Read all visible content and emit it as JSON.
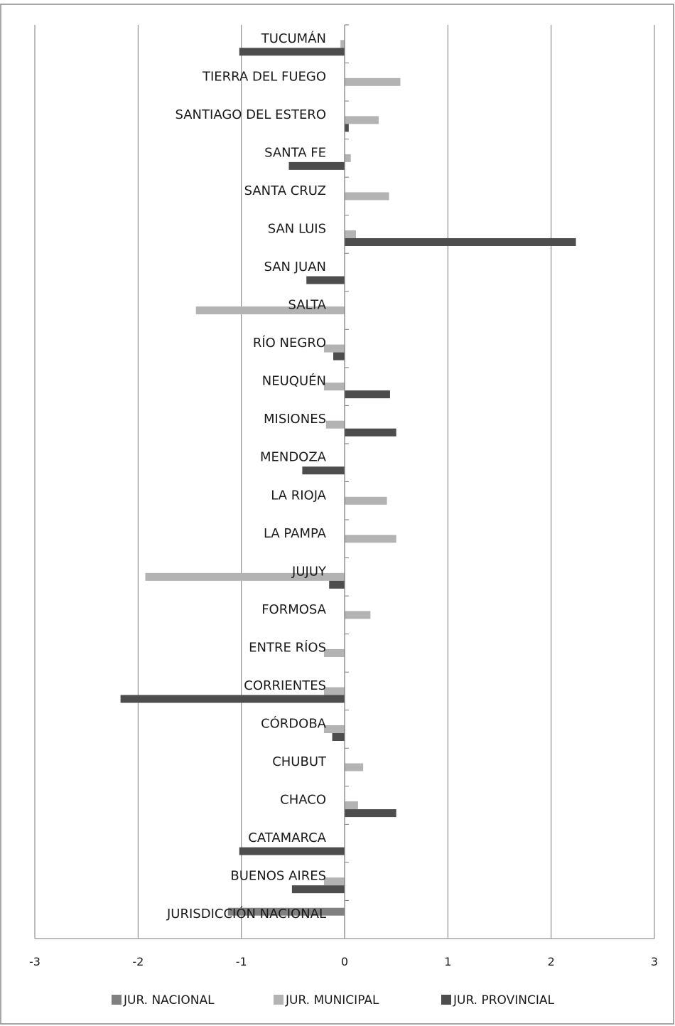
{
  "chart_data": {
    "type": "bar",
    "orientation": "horizontal",
    "title": "",
    "xlabel": "",
    "ylabel": "",
    "xlim": [
      -3,
      3
    ],
    "xticks": [
      -3,
      -2,
      -1,
      0,
      1,
      2,
      3
    ],
    "grid": true,
    "legend_position": "bottom",
    "categories": [
      "TUCUMÁN",
      "TIERRA DEL FUEGO",
      "SANTIAGO DEL ESTERO",
      "SANTA FE",
      "SANTA CRUZ",
      "SAN LUIS",
      "SAN JUAN",
      "SALTA",
      "RÍO NEGRO",
      "NEUQUÉN",
      "MISIONES",
      "MENDOZA",
      "LA RIOJA",
      "LA PAMPA",
      "JUJUY",
      "FORMOSA",
      "ENTRE RÍOS",
      "CORRIENTES",
      "CÓRDOBA",
      "CHUBUT",
      "CHACO",
      "CATAMARCA",
      "BUENOS AIRES",
      "JURISDICCIÓN NACIONAL"
    ],
    "series": [
      {
        "name": "JUR. NACIONAL",
        "color": "#808080",
        "values": [
          0,
          0,
          0,
          0,
          0,
          0,
          0,
          0,
          0,
          0,
          0,
          0,
          0,
          0,
          0,
          0,
          0,
          0,
          0,
          0,
          0,
          0,
          0,
          -1.13
        ]
      },
      {
        "name": "JUR. MUNICIPAL",
        "color": "#b3b3b3",
        "values": [
          -0.04,
          0.54,
          0.33,
          0.06,
          0.43,
          0.11,
          0,
          -1.44,
          -0.2,
          -0.2,
          -0.18,
          0,
          0.41,
          0.5,
          -1.93,
          0.25,
          -0.2,
          -0.2,
          -0.2,
          0.18,
          0.13,
          0,
          -0.2,
          0
        ]
      },
      {
        "name": "JUR. PROVINCIAL",
        "color": "#4d4d4d",
        "values": [
          -1.02,
          0,
          0.04,
          -0.54,
          0,
          2.24,
          -0.37,
          0,
          -0.11,
          0.44,
          0.5,
          -0.41,
          0,
          0,
          -0.15,
          0,
          0,
          -2.17,
          -0.12,
          0,
          0.5,
          -1.02,
          -0.51,
          0
        ]
      }
    ]
  }
}
